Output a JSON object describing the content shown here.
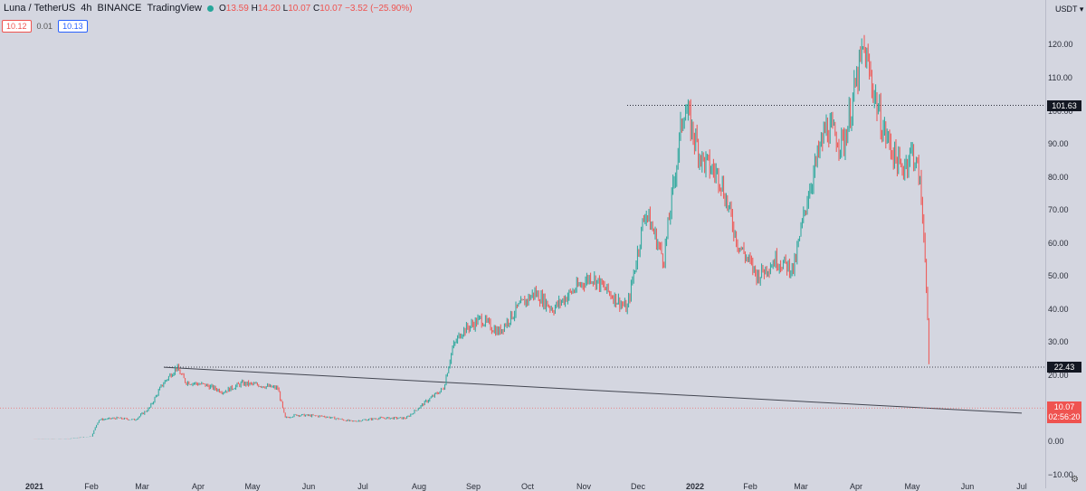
{
  "header": {
    "symbol": "Luna / TetherUS",
    "interval": "4h",
    "exchange": "BINANCE",
    "source": "TradingView",
    "open_label": "O",
    "open": "13.59",
    "high_label": "H",
    "high": "14.20",
    "low_label": "L",
    "low": "10.07",
    "close_label": "C",
    "close": "10.07",
    "change": "−3.52 (−25.90%)"
  },
  "order": {
    "sell": "10.12",
    "spread": "0.01",
    "buy": "10.13"
  },
  "currency": "USDT",
  "colors": {
    "up": "#26a69a",
    "down": "#ef5350",
    "background": "#d4d6e0"
  },
  "chart_data": {
    "type": "line",
    "title": "Luna / TetherUS 4h BINANCE",
    "ylim": [
      -10,
      125
    ],
    "y_ticks": [
      "120.00",
      "110.00",
      "100.00",
      "90.00",
      "80.00",
      "70.00",
      "60.00",
      "50.00",
      "40.00",
      "30.00",
      "20.00",
      "10.00",
      "0.00",
      "−10.00"
    ],
    "x_ticks": [
      "2021",
      "Feb",
      "Mar",
      "Apr",
      "May",
      "Jun",
      "Jul",
      "Aug",
      "Sep",
      "Oct",
      "Nov",
      "Dec",
      "2022",
      "Feb",
      "Mar",
      "Apr",
      "May",
      "Jun",
      "Jul"
    ],
    "price_path": [
      [
        "2021-01-01",
        0.6
      ],
      [
        "2021-01-20",
        0.8
      ],
      [
        "2021-02-01",
        1.5
      ],
      [
        "2021-02-05",
        6.5
      ],
      [
        "2021-02-15",
        7.0
      ],
      [
        "2021-02-25",
        6.5
      ],
      [
        "2021-03-05",
        10
      ],
      [
        "2021-03-12",
        17
      ],
      [
        "2021-03-20",
        22.4
      ],
      [
        "2021-03-25",
        18
      ],
      [
        "2021-04-05",
        17
      ],
      [
        "2021-04-15",
        15
      ],
      [
        "2021-04-25",
        17.5
      ],
      [
        "2021-05-05",
        17
      ],
      [
        "2021-05-15",
        16
      ],
      [
        "2021-05-19",
        7
      ],
      [
        "2021-05-25",
        8
      ],
      [
        "2021-06-10",
        7.5
      ],
      [
        "2021-06-25",
        6
      ],
      [
        "2021-07-10",
        7
      ],
      [
        "2021-07-25",
        7
      ],
      [
        "2021-08-05",
        12
      ],
      [
        "2021-08-15",
        16
      ],
      [
        "2021-08-20",
        28
      ],
      [
        "2021-08-25",
        33
      ],
      [
        "2021-09-05",
        37
      ],
      [
        "2021-09-15",
        33
      ],
      [
        "2021-09-25",
        40
      ],
      [
        "2021-10-05",
        45
      ],
      [
        "2021-10-15",
        40
      ],
      [
        "2021-10-25",
        45
      ],
      [
        "2021-11-05",
        50
      ],
      [
        "2021-11-15",
        45
      ],
      [
        "2021-11-25",
        40
      ],
      [
        "2021-12-05",
        70
      ],
      [
        "2021-12-15",
        55
      ],
      [
        "2021-12-26",
        101.6
      ],
      [
        "2022-01-05",
        85
      ],
      [
        "2022-01-15",
        80
      ],
      [
        "2022-01-25",
        60
      ],
      [
        "2022-02-05",
        50
      ],
      [
        "2022-02-15",
        55
      ],
      [
        "2022-02-25",
        52
      ],
      [
        "2022-03-05",
        75
      ],
      [
        "2022-03-15",
        95
      ],
      [
        "2022-03-25",
        90
      ],
      [
        "2022-04-05",
        119
      ],
      [
        "2022-04-15",
        95
      ],
      [
        "2022-04-25",
        82
      ],
      [
        "2022-05-01",
        88
      ],
      [
        "2022-05-05",
        80
      ],
      [
        "2022-05-08",
        60
      ],
      [
        "2022-05-10",
        30
      ],
      [
        "2022-05-11",
        10.07
      ]
    ],
    "horizontal_levels": [
      101.63,
      22.43
    ],
    "trendline": [
      [
        "2021-03-13",
        22.4
      ],
      [
        "2022-07-01",
        8.5
      ]
    ],
    "current_price": 10.07,
    "countdown": "02:56:20",
    "level_labels": [
      "101.63",
      "22.43"
    ]
  }
}
